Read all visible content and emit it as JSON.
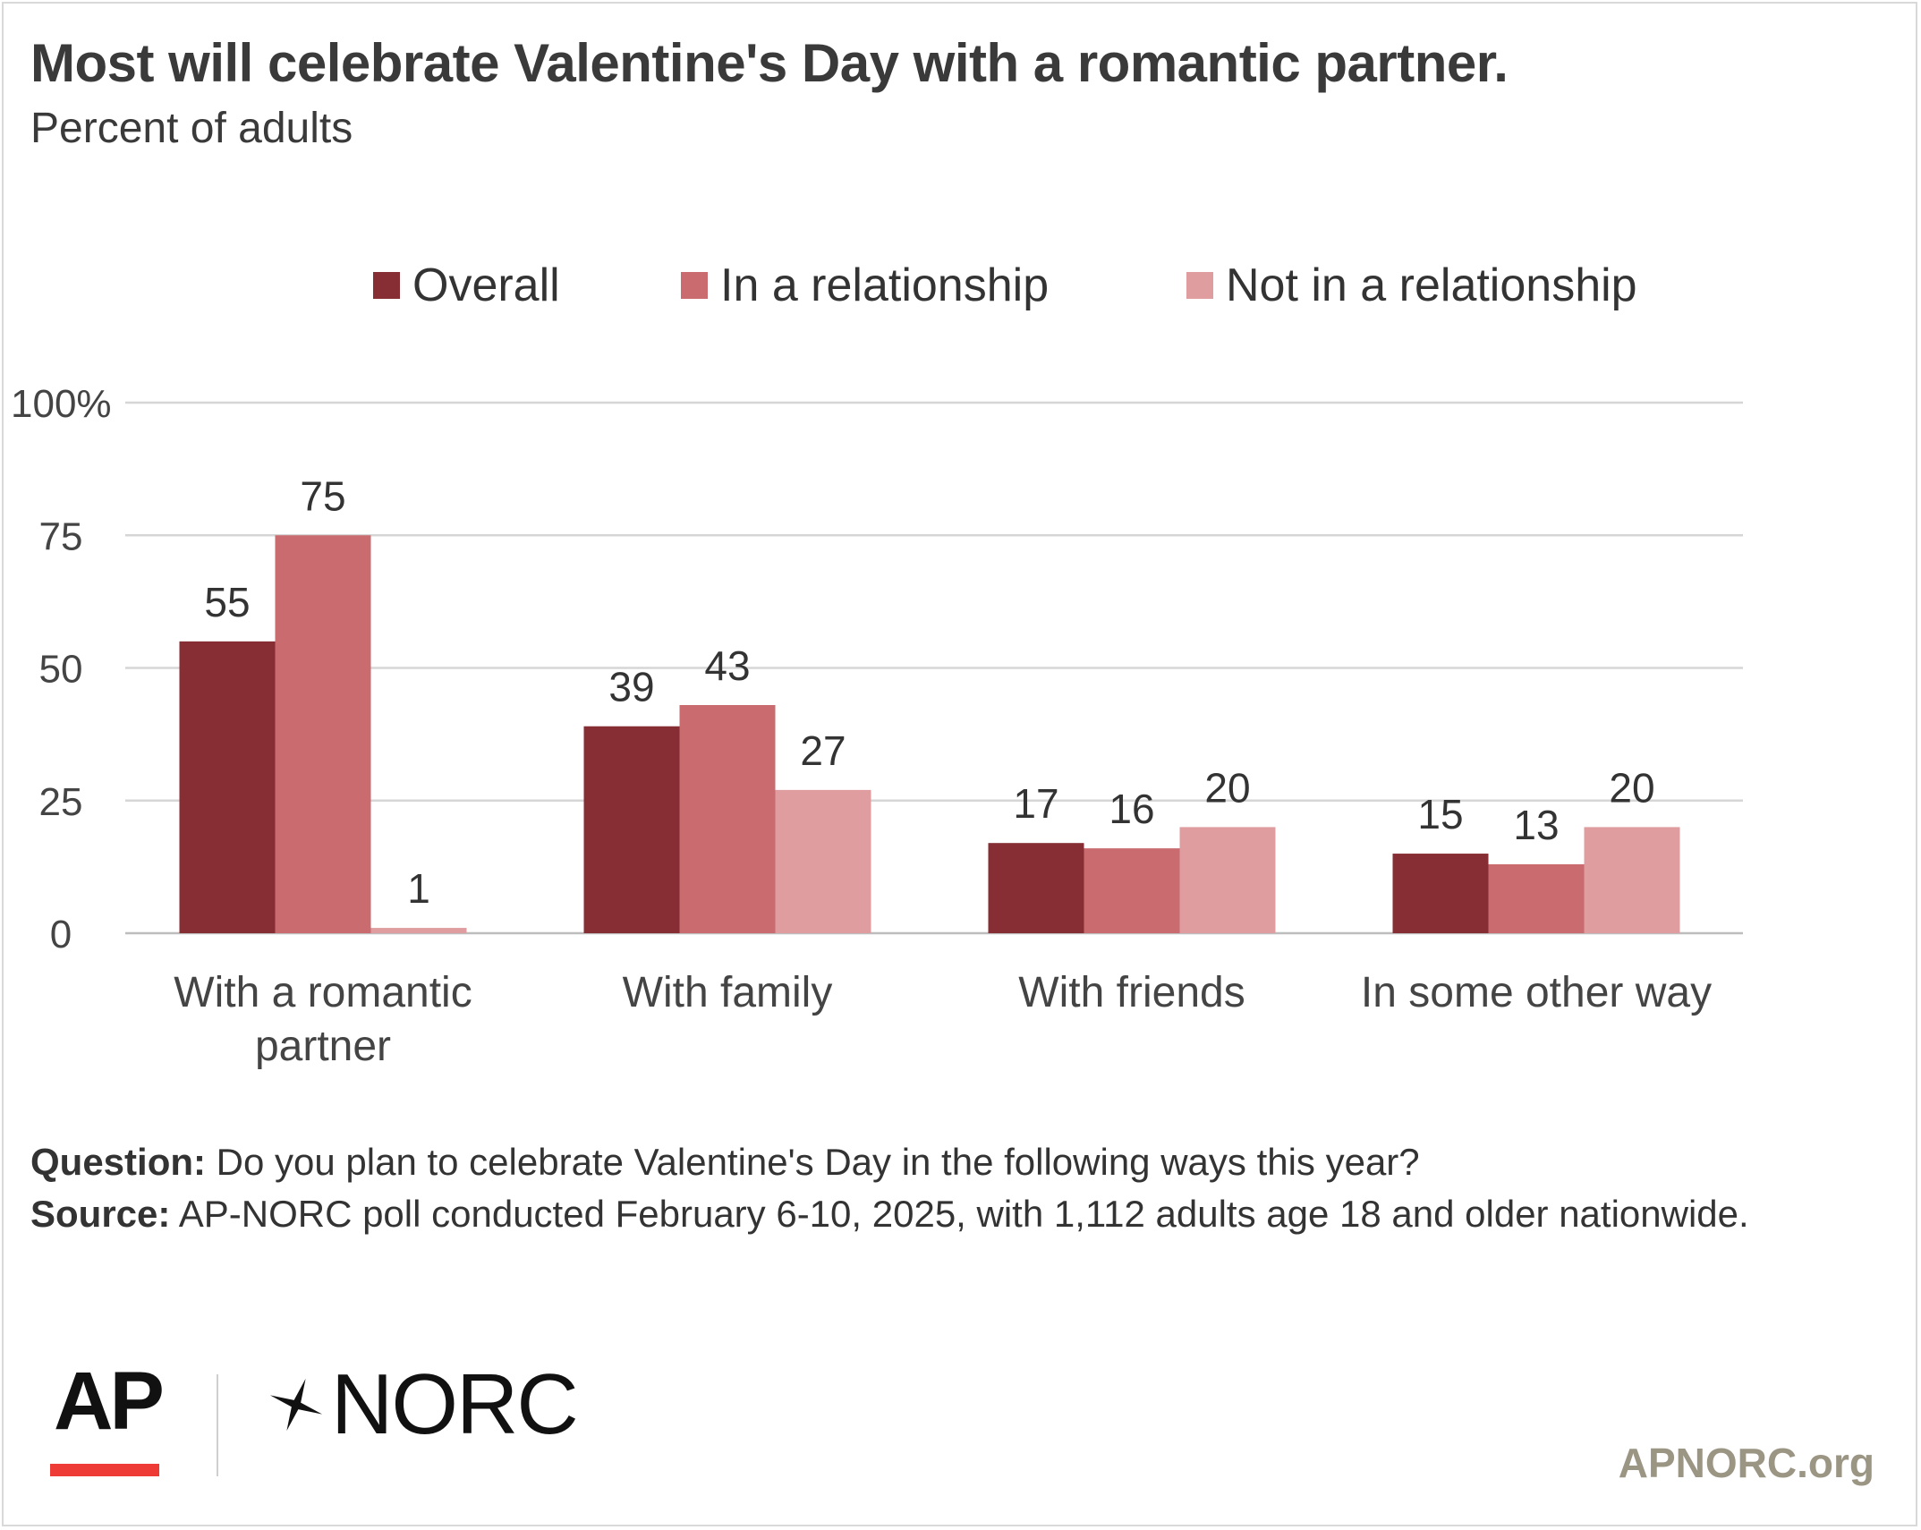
{
  "header": {
    "title": "Most will celebrate Valentine's Day with a romantic partner.",
    "subtitle": "Percent of adults"
  },
  "colors": {
    "overall": "#862e33",
    "in_relationship": "#c96b6f",
    "not_in_relationship": "#df9da0",
    "gridline": "#d6d6d6",
    "axis_text": "#444444",
    "site": "#9b9584",
    "ap_red": "#ef3b36"
  },
  "chart_data": {
    "type": "bar",
    "title": "Most will celebrate Valentine's Day with a romantic partner.",
    "subtitle": "Percent of adults",
    "categories": [
      [
        "With a romantic",
        "partner"
      ],
      [
        "With family"
      ],
      [
        "With friends"
      ],
      [
        "In some other way"
      ]
    ],
    "series": [
      {
        "name": "Overall",
        "color": "#862e33",
        "values": [
          55,
          39,
          17,
          15
        ]
      },
      {
        "name": "In a relationship",
        "color": "#c96b6f",
        "values": [
          75,
          43,
          16,
          13
        ]
      },
      {
        "name": "Not in a relationship",
        "color": "#df9da0",
        "values": [
          1,
          27,
          20,
          20
        ]
      }
    ],
    "yticks": [
      "0",
      "25",
      "50",
      "75",
      "100%"
    ],
    "ylim": [
      0,
      100
    ],
    "grid": true,
    "legend_position": "top"
  },
  "footnote": {
    "question_label": "Question:",
    "question_text": " Do you plan to celebrate Valentine's Day in the following ways this year?",
    "source_label": "Source:",
    "source_text": " AP-NORC poll conducted February 6-10, 2025, with 1,112 adults age 18 and older nationwide."
  },
  "branding": {
    "ap_logo": "AP",
    "norc_logo": "NORC",
    "site": "APNORC.org"
  }
}
